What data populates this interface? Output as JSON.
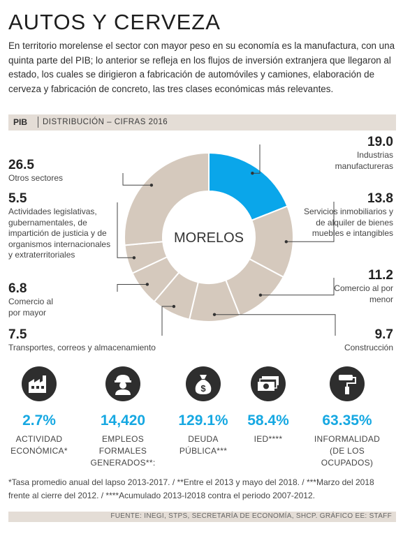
{
  "title": "AUTOS Y CERVEZA",
  "intro": "En territorio morelense el sector con mayor peso en su economía es la manufactura, con una quinta parte del PIB; lo anterior se refleja en los flujos de inversión extranjera que llegaron al estado, los cuales se dirigieron a fabricación de automóviles y camiones, elaboración de cerveza y fabricación de concreto, las tres clases económicas más relevantes.",
  "section_bar": {
    "pib": "PIB",
    "subtitle": "DISTRIBUCIÓN – CIFRAS 2016"
  },
  "colors": {
    "highlight": "#0aa6ea",
    "ring": "#d5c9bd",
    "accent_text": "#16a8e2"
  },
  "chart_data": {
    "type": "pie",
    "center_label": "MORELOS",
    "highlight_index": 0,
    "slices": [
      {
        "label": "Industrias manufactureras",
        "value": 19.0,
        "value_text": "19.0"
      },
      {
        "label": "Servicios inmobiliarios y de alquiler de bienes muebles e intangibles",
        "value": 13.8,
        "value_text": "13.8"
      },
      {
        "label": "Comercio al por menor",
        "value": 11.2,
        "value_text": "11.2"
      },
      {
        "label": "Construcción",
        "value": 9.7,
        "value_text": "9.7"
      },
      {
        "label": "Transportes, correos y almacenamiento",
        "value": 7.5,
        "value_text": "7.5"
      },
      {
        "label": "Comercio al por mayor",
        "value": 6.8,
        "value_text": "6.8"
      },
      {
        "label": "Actividades legislativas, gubernamentales, de impartición de justicia y de organismos internacionales y extraterritoriales",
        "value": 5.5,
        "value_text": "5.5"
      },
      {
        "label": "Otros sectores",
        "value": 26.5,
        "value_text": "26.5"
      }
    ]
  },
  "stats": [
    {
      "icon": "factory-icon",
      "value": "2.7%",
      "caption_line1": "ACTIVIDAD",
      "caption_line2": "ECONÓMICA*"
    },
    {
      "icon": "worker-icon",
      "value": "14,420",
      "caption_line1": "EMPLEOS FORMALES",
      "caption_line2": "GENERADOS**:"
    },
    {
      "icon": "money-bag-icon",
      "value": "129.1%",
      "caption_line1": "DEUDA",
      "caption_line2": "PÚBLICA***"
    },
    {
      "icon": "bills-icon",
      "value": "58.4%",
      "caption_line1": "IED****",
      "caption_line2": ""
    },
    {
      "icon": "paint-roller-icon",
      "value": "63.35%",
      "caption_line1": "INFORMALIDAD",
      "caption_line2": "(DE LOS OCUPADOS)"
    }
  ],
  "footnote": "*Tasa promedio anual del lapso 2013-2017. / **Entre el 2013 y mayo del 2018. / ***Marzo del 2018 frente al cierre del 2012. / ****Acumulado 2013-I2018 contra el periodo 2007-2012.",
  "source": "FUENTE: INEGI, STPS, SECRETARÍA DE ECONOMÍA, SHCP.  GRÁFICO EE: STAFF"
}
